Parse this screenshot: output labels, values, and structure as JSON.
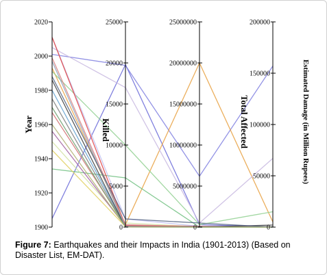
{
  "caption": {
    "prefix": "Figure 7:",
    "text": "Earthquakes and their Impacts in India (1901-2013) (Based on Disaster List, EM-DAT)."
  },
  "chart_data": {
    "type": "parallel-coordinates",
    "title": "",
    "axes": [
      {
        "key": "year",
        "label": "Year",
        "min": 1900,
        "max": 2020,
        "ticks": [
          1900,
          1920,
          1940,
          1960,
          1980,
          2000,
          2020
        ]
      },
      {
        "key": "killed",
        "label": "Killed",
        "min": 0,
        "max": 25000,
        "ticks": [
          0,
          5000,
          10000,
          15000,
          20000,
          25000
        ]
      },
      {
        "key": "affected",
        "label": "Total Affected",
        "min": 0,
        "max": 25000000,
        "ticks": [
          0,
          5000000,
          10000000,
          15000000,
          20000000,
          25000000
        ]
      },
      {
        "key": "damage",
        "label": "Estimated Damage (in Million Rupees)",
        "min": 0,
        "max": 200000,
        "ticks": [
          0,
          50000,
          100000,
          150000,
          200000
        ]
      }
    ],
    "grid": false,
    "legend": "none",
    "lines": [
      {
        "color": "#6a6ad8",
        "values": [
          1905,
          19800,
          300000,
          200
        ]
      },
      {
        "color": "#8080e0",
        "values": [
          2001,
          19700,
          6200000,
          157000
        ]
      },
      {
        "color": "#e8a040",
        "values": [
          1993,
          300,
          20000000,
          5000
        ]
      },
      {
        "color": "#c8b8e0",
        "values": [
          2005,
          17000,
          500000,
          67000
        ]
      },
      {
        "color": "#90d090",
        "values": [
          1991,
          10000,
          300000,
          15000
        ]
      },
      {
        "color": "#70c080",
        "values": [
          1934,
          6000,
          0,
          0
        ]
      },
      {
        "color": "#c0c0f0",
        "values": [
          2011,
          1000,
          100000,
          200
        ]
      },
      {
        "color": "#d0e0a0",
        "values": [
          1950,
          500,
          50000,
          100
        ]
      },
      {
        "color": "#e04040",
        "values": [
          2011,
          200,
          100000,
          200
        ]
      },
      {
        "color": "#d88080",
        "values": [
          1999,
          300,
          50000,
          300
        ]
      },
      {
        "color": "#a060a0",
        "values": [
          1956,
          100,
          10000,
          100
        ]
      },
      {
        "color": "#e0d060",
        "values": [
          1945,
          50,
          10000,
          100
        ]
      },
      {
        "color": "#60a0d0",
        "values": [
          1980,
          100,
          50000,
          300
        ]
      },
      {
        "color": "#d07070",
        "values": [
          1967,
          180,
          5000,
          100
        ]
      },
      {
        "color": "#808080",
        "values": [
          1975,
          50,
          10000,
          100
        ]
      },
      {
        "color": "#404040",
        "values": [
          1986,
          20,
          5000,
          2000
        ]
      },
      {
        "color": "#8ca0b8",
        "values": [
          1997,
          50,
          2000,
          100
        ]
      },
      {
        "color": "#70a070",
        "values": [
          1970,
          20,
          1000,
          50
        ]
      },
      {
        "color": "#506080",
        "values": [
          1988,
          1000,
          500000,
          100
        ]
      },
      {
        "color": "#b0b070",
        "values": [
          1960,
          10,
          500,
          50
        ]
      }
    ]
  }
}
